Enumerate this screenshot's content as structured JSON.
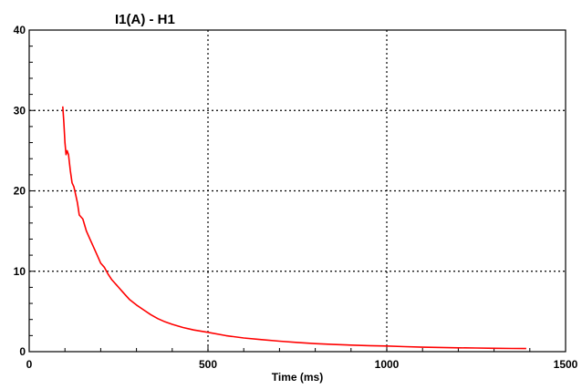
{
  "chart_data": {
    "type": "line",
    "title": "I1(A) - H1",
    "xlabel": "Time (ms)",
    "ylabel": "",
    "xlim": [
      0,
      1500
    ],
    "ylim": [
      0,
      40
    ],
    "x_ticks": [
      0,
      500,
      1000,
      1500
    ],
    "x_tick_labels": [
      "0",
      "500",
      "1000",
      "1500"
    ],
    "y_ticks": [
      0,
      10,
      20,
      30,
      40
    ],
    "y_tick_labels": [
      "0",
      "10",
      "20",
      "30",
      "40"
    ],
    "grid": "dotted",
    "series": [
      {
        "color": "#ff0000",
        "x": [
          94,
          97,
          100,
          103,
          106,
          110,
          115,
          120,
          125,
          130,
          135,
          140,
          150,
          160,
          170,
          180,
          190,
          200,
          210,
          220,
          230,
          240,
          250,
          260,
          270,
          280,
          300,
          320,
          340,
          360,
          380,
          400,
          430,
          460,
          500,
          550,
          600,
          650,
          700,
          750,
          800,
          850,
          900,
          950,
          1000,
          1050,
          1100,
          1150,
          1200,
          1250,
          1300,
          1350,
          1390
        ],
        "y": [
          30.5,
          28.5,
          26.0,
          24.5,
          25.0,
          24.5,
          22.5,
          21.0,
          20.5,
          19.5,
          18.5,
          17.0,
          16.5,
          15.0,
          14.0,
          13.0,
          12.0,
          11.0,
          10.5,
          9.7,
          9.0,
          8.5,
          8.0,
          7.5,
          7.0,
          6.5,
          5.8,
          5.2,
          4.6,
          4.1,
          3.7,
          3.4,
          3.0,
          2.7,
          2.4,
          2.0,
          1.7,
          1.5,
          1.3,
          1.15,
          1.0,
          0.9,
          0.82,
          0.75,
          0.7,
          0.62,
          0.56,
          0.52,
          0.48,
          0.45,
          0.42,
          0.4,
          0.38
        ]
      }
    ]
  }
}
